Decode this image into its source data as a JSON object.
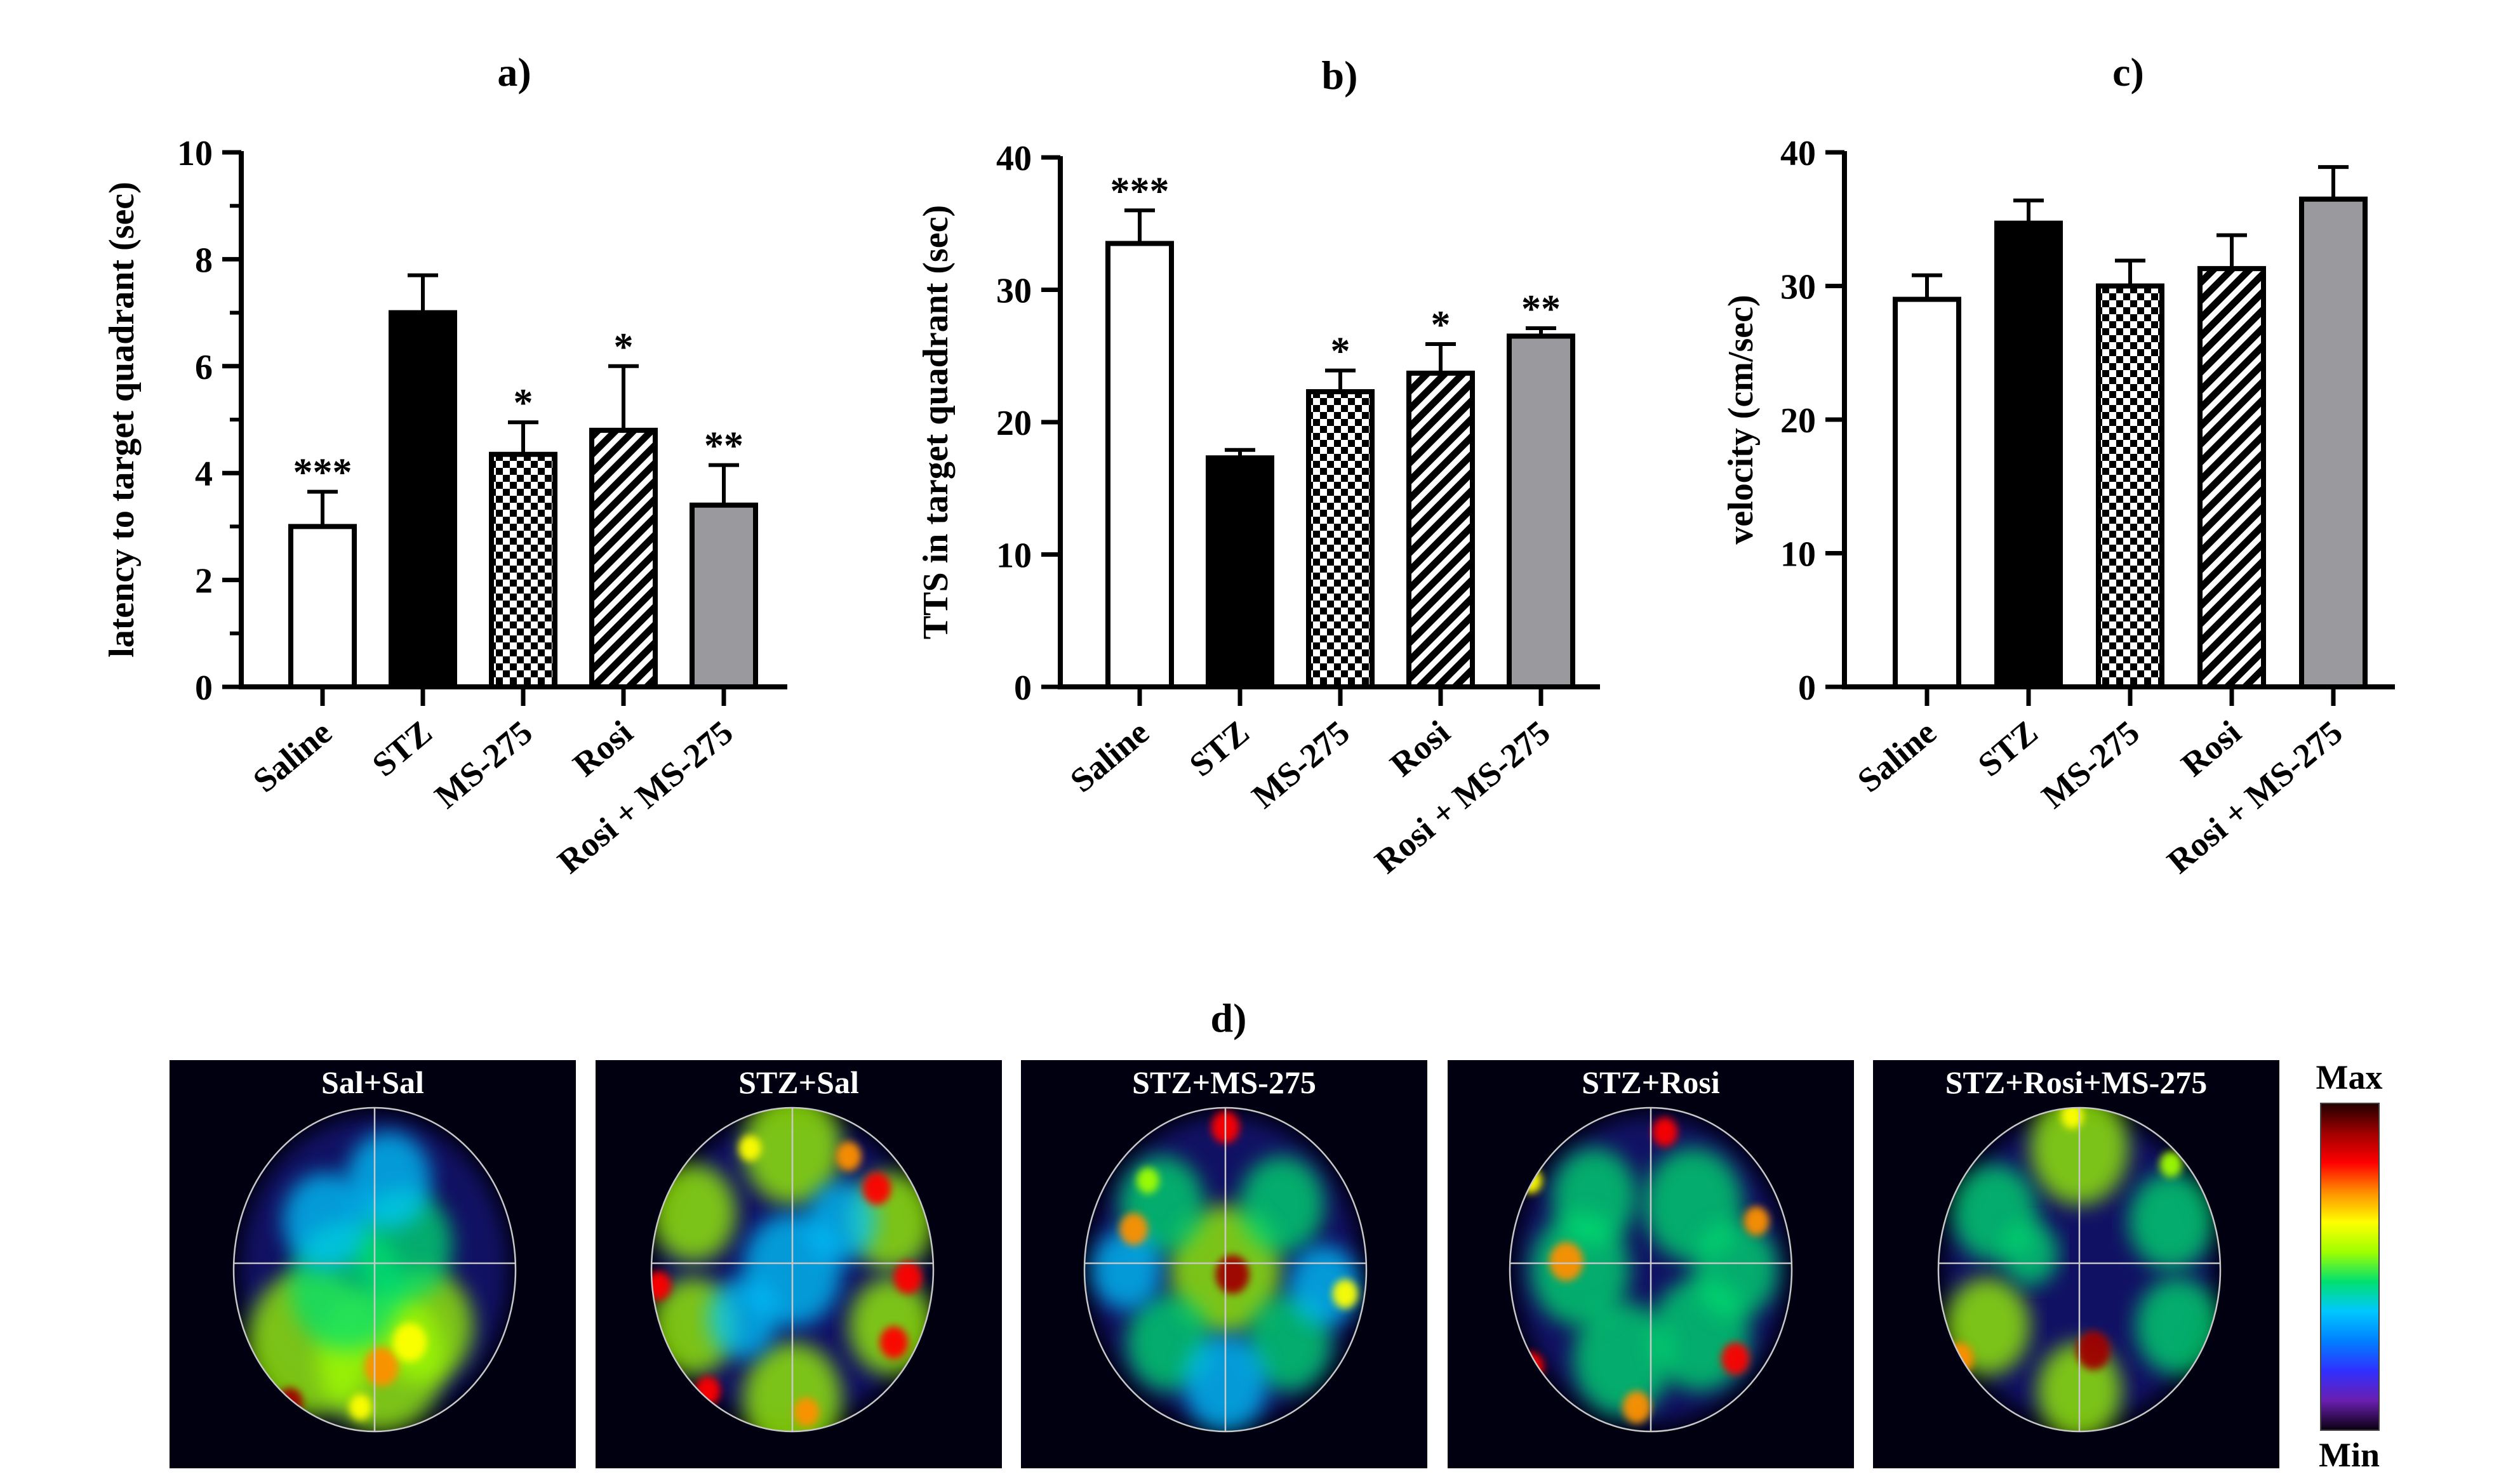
{
  "chart_data": [
    {
      "type": "bar",
      "panel": "a)",
      "ylabel": "latency to target quadrant (sec)",
      "ylim": [
        0,
        10
      ],
      "yticks": [
        "0",
        "2",
        "4",
        "6",
        "8",
        "10"
      ],
      "categories": [
        "Saline",
        "STZ",
        "MS-275",
        "Rosi",
        "Rosi + MS-275"
      ],
      "values": [
        3.0,
        7.0,
        4.35,
        4.8,
        3.4
      ],
      "errors": [
        0.65,
        0.7,
        0.6,
        1.2,
        0.75
      ],
      "significance": [
        "***",
        "",
        "*",
        "*",
        "**"
      ],
      "fills": [
        "white",
        "black",
        "checker",
        "hatch",
        "gray"
      ],
      "minor_ticks": true
    },
    {
      "type": "bar",
      "panel": "b)",
      "ylabel": "TTS in target quadrant (sec)",
      "ylim": [
        0,
        40
      ],
      "yticks": [
        "0",
        "10",
        "20",
        "30",
        "40"
      ],
      "categories": [
        "Saline",
        "STZ",
        "MS-275",
        "Rosi",
        "Rosi + MS-275"
      ],
      "values": [
        33.5,
        17.3,
        22.3,
        23.7,
        26.5
      ],
      "errors": [
        2.5,
        0.6,
        1.6,
        2.2,
        0.6
      ],
      "significance": [
        "***",
        "",
        "*",
        "*",
        "**"
      ],
      "fills": [
        "white",
        "black",
        "checker",
        "hatch",
        "gray"
      ],
      "minor_ticks": false
    },
    {
      "type": "bar",
      "panel": "c)",
      "ylabel": "velocity (cm/sec)",
      "ylim": [
        0,
        40
      ],
      "yticks": [
        "0",
        "10",
        "20",
        "30",
        "40"
      ],
      "categories": [
        "Saline",
        "STZ",
        "MS-275",
        "Rosi",
        "Rosi + MS-275"
      ],
      "values": [
        29.0,
        34.7,
        30.0,
        31.3,
        36.5
      ],
      "errors": [
        1.8,
        1.7,
        1.9,
        2.5,
        2.4
      ],
      "significance": [
        "",
        "",
        "",
        "",
        ""
      ],
      "fills": [
        "white",
        "black",
        "checker",
        "hatch",
        "gray"
      ],
      "minor_ticks": false
    }
  ],
  "heatmaps": {
    "panel": "d)",
    "titles": [
      "Sal+Sal",
      "STZ+Sal",
      "STZ+MS-275",
      "STZ+Rosi",
      "STZ+Rosi+MS-275"
    ],
    "colorbar": {
      "max_label": "Max",
      "min_label": "Min"
    },
    "colormap": [
      "#0a0010",
      "#6a1fb0",
      "#3030ff",
      "#0080ff",
      "#00c8ff",
      "#00e070",
      "#a0ff00",
      "#ffff00",
      "#ff9000",
      "#ff0000",
      "#a00000",
      "#200000"
    ]
  }
}
